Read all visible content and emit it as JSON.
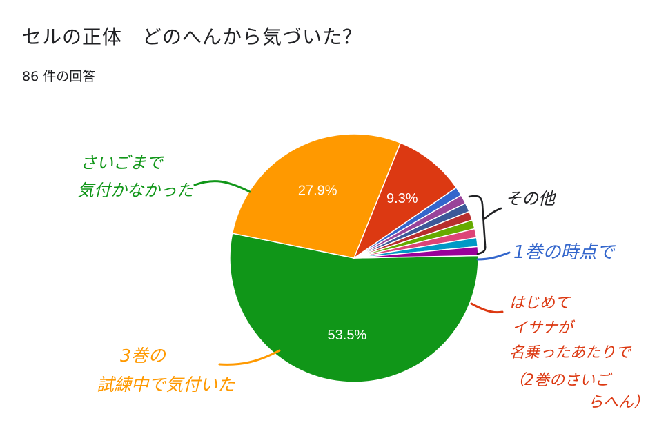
{
  "title": "セルの正体　どのへんから気づいた？",
  "subtitle": "86 件の回答",
  "colors": {
    "green": "#109618",
    "orange": "#ff9900",
    "red": "#dc3912",
    "blue": "#3366cc",
    "black": "#202124"
  },
  "chart_data": {
    "type": "pie",
    "total_responses": 86,
    "slices": [
      {
        "name": "さいごまで気付かなかった",
        "value": 53.5,
        "color": "#109618",
        "label": "53.5%"
      },
      {
        "name": "3巻の試練中で気付いた",
        "value": 27.9,
        "color": "#ff9900",
        "label": "27.9%"
      },
      {
        "name": "はじめてイサナが名乗ったあたりで（2巻のさいごらへん）",
        "value": 9.3,
        "color": "#dc3912",
        "label": "9.3%"
      },
      {
        "name": "1巻の時点で",
        "value": 1.16,
        "color": "#3366cc",
        "label": ""
      },
      {
        "name": "",
        "value": 1.16,
        "color": "#994499",
        "label": ""
      },
      {
        "name": "",
        "value": 1.16,
        "color": "#3b5998",
        "label": ""
      },
      {
        "name": "",
        "value": 1.16,
        "color": "#b82e2e",
        "label": ""
      },
      {
        "name": "",
        "value": 1.16,
        "color": "#66aa00",
        "label": ""
      },
      {
        "name": "",
        "value": 1.16,
        "color": "#dd4477",
        "label": ""
      },
      {
        "name": "",
        "value": 1.16,
        "color": "#0099c6",
        "label": ""
      },
      {
        "name": "",
        "value": 1.16,
        "color": "#990099",
        "label": ""
      }
    ]
  },
  "annotations": {
    "green": [
      "さいごまで",
      "気付かなかった"
    ],
    "orange": [
      "3巻の",
      "試練中で気付いた"
    ],
    "red": [
      "はじめて",
      "イサナが",
      "名乗ったあたりで",
      "（2巻のさいご",
      "らへん）"
    ],
    "blue": [
      "1巻の時点で"
    ],
    "black": [
      "その他"
    ]
  }
}
